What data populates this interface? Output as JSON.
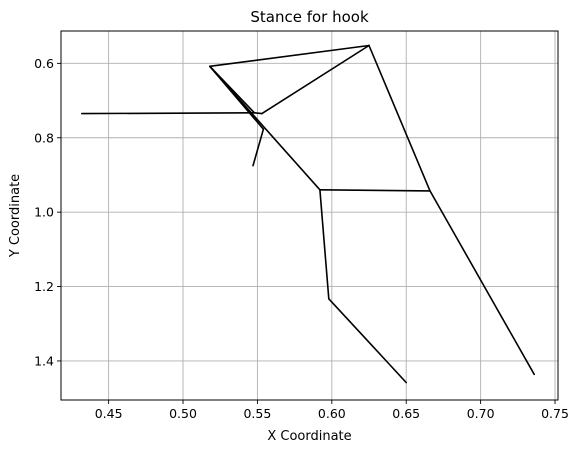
{
  "chart_data": {
    "type": "line",
    "title": "Stance for hook",
    "xlabel": "X Coordinate",
    "ylabel": "Y Coordinate",
    "xlim": [
      0.418,
      0.752
    ],
    "ylim": [
      1.505,
      0.513
    ],
    "y_inverted": true,
    "grid": true,
    "line_color": "#000000",
    "xticks": [
      0.45,
      0.5,
      0.55,
      0.6,
      0.65,
      0.7,
      0.75
    ],
    "xtick_labels": [
      "0.45",
      "0.50",
      "0.55",
      "0.60",
      "0.65",
      "0.70",
      "0.75"
    ],
    "yticks": [
      0.6,
      0.8,
      1.0,
      1.2,
      1.4
    ],
    "ytick_labels": [
      "0.6",
      "0.8",
      "1.0",
      "1.2",
      "1.4"
    ],
    "segments": [
      {
        "x": [
          0.432,
          0.548
        ],
        "y": [
          0.735,
          0.733
        ]
      },
      {
        "x": [
          0.548,
          0.553
        ],
        "y": [
          0.733,
          0.735
        ]
      },
      {
        "x": [
          0.553,
          0.625
        ],
        "y": [
          0.735,
          0.552
        ]
      },
      {
        "x": [
          0.625,
          0.518
        ],
        "y": [
          0.552,
          0.608
        ]
      },
      {
        "x": [
          0.518,
          0.548
        ],
        "y": [
          0.608,
          0.733
        ]
      },
      {
        "x": [
          0.518,
          0.554
        ],
        "y": [
          0.608,
          0.777
        ]
      },
      {
        "x": [
          0.554,
          0.547
        ],
        "y": [
          0.777,
          0.875
        ]
      },
      {
        "x": [
          0.518,
          0.592
        ],
        "y": [
          0.608,
          0.94
        ]
      },
      {
        "x": [
          0.592,
          0.666
        ],
        "y": [
          0.94,
          0.943
        ]
      },
      {
        "x": [
          0.625,
          0.666
        ],
        "y": [
          0.552,
          0.943
        ]
      },
      {
        "x": [
          0.592,
          0.598
        ],
        "y": [
          0.94,
          1.233
        ]
      },
      {
        "x": [
          0.598,
          0.65
        ],
        "y": [
          1.233,
          1.458
        ]
      },
      {
        "x": [
          0.666,
          0.736
        ],
        "y": [
          0.943,
          1.436
        ]
      }
    ]
  }
}
